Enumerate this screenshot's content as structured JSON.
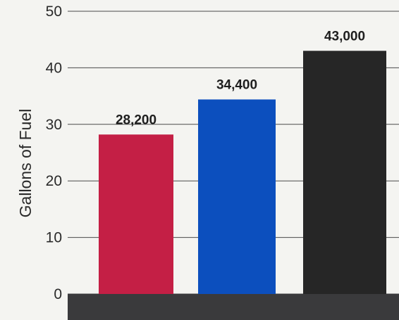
{
  "chart_data": {
    "type": "bar",
    "title": "",
    "xlabel": "",
    "ylabel": "Gallons of Fuel",
    "ylim": [
      0,
      50
    ],
    "yticks": [
      0,
      10,
      20,
      30,
      40,
      50
    ],
    "grid": true,
    "categories": [
      "",
      "",
      ""
    ],
    "values": [
      28.2,
      34.4,
      43.0
    ],
    "data_labels": [
      "28,200",
      "34,400",
      "43,000"
    ],
    "colors": [
      "#c41f45",
      "#0c4fbe",
      "#262626"
    ],
    "base_band_color": "#3a3a3c",
    "grid_color": "#4a4a4a"
  }
}
